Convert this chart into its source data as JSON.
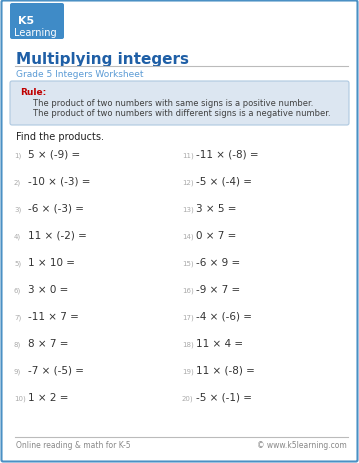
{
  "title": "Multiplying integers",
  "subtitle": "Grade 5 Integers Worksheet",
  "rule_label": "Rule:",
  "rule_lines": [
    "     The product of two numbers with same signs is a positive number.",
    "     The product of two numbers with different signs is a negative number."
  ],
  "instruction": "Find the products.",
  "problems_left": [
    "5 × (-9) =",
    "-10 × (-3) =",
    "-6 × (-3) =",
    "11 × (-2) =",
    "1 × 10 =",
    "3 × 0 =",
    "-11 × 7 =",
    "8 × 7 =",
    "-7 × (-5) =",
    "1 × 2 ="
  ],
  "problems_right": [
    "-11 × (-8) =",
    "-5 × (-4) =",
    "3 × 5 =",
    "0 × 7 =",
    "-6 × 9 =",
    "-9 × 7 =",
    "-4 × (-6) =",
    "11 × 4 =",
    "11 × (-8) =",
    "-5 × (-1) ="
  ],
  "numbers_left": [
    "1)",
    "2)",
    "3)",
    "4)",
    "5)",
    "6)",
    "7)",
    "8)",
    "9)",
    "10)"
  ],
  "numbers_right": [
    "11)",
    "12)",
    "13)",
    "14)",
    "15)",
    "16)",
    "17)",
    "18)",
    "19)",
    "20)"
  ],
  "footer_left": "Online reading & math for K-5",
  "footer_right": "© www.k5learning.com",
  "bg_color": "#ffffff",
  "border_color": "#4a90c4",
  "title_color": "#1f5fa6",
  "subtitle_color": "#5b9bd5",
  "rule_bg": "#dce6f1",
  "rule_border": "#aec8e0",
  "rule_label_color": "#c00000",
  "rule_text_color": "#404040",
  "problem_color": "#333333",
  "number_color": "#aaaaaa",
  "footer_color": "#888888",
  "instruction_color": "#222222",
  "logo_top_color": "#2a7fc1",
  "logo_bottom_color": "#4a9e3f"
}
